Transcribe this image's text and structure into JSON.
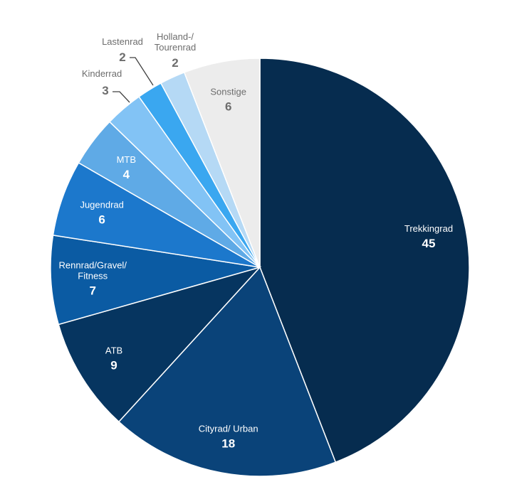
{
  "chart_data": {
    "type": "pie",
    "title": "",
    "slices": [
      {
        "label": "Trekkingrad",
        "value": 45,
        "color": "#062c4f"
      },
      {
        "label": "Cityrad/ Urban",
        "value": 18,
        "color": "#0a4379"
      },
      {
        "label": "ATB",
        "value": 9,
        "color": "#063560"
      },
      {
        "label": "Rennrad/Gravel/\nFitness",
        "value": 7,
        "color": "#0b5ba3"
      },
      {
        "label": "Jugendrad",
        "value": 6,
        "color": "#1c78cc"
      },
      {
        "label": "MTB",
        "value": 4,
        "color": "#5faae6"
      },
      {
        "label": "Kinderrad",
        "value": 3,
        "color": "#82c3f5"
      },
      {
        "label": "Lastenrad",
        "value": 2,
        "color": "#3aa7f0"
      },
      {
        "label": "Holland-/\nTourenrad",
        "value": 2,
        "color": "#b5d9f5"
      },
      {
        "label": "Sonstige",
        "value": 6,
        "color": "#ececec"
      }
    ]
  }
}
